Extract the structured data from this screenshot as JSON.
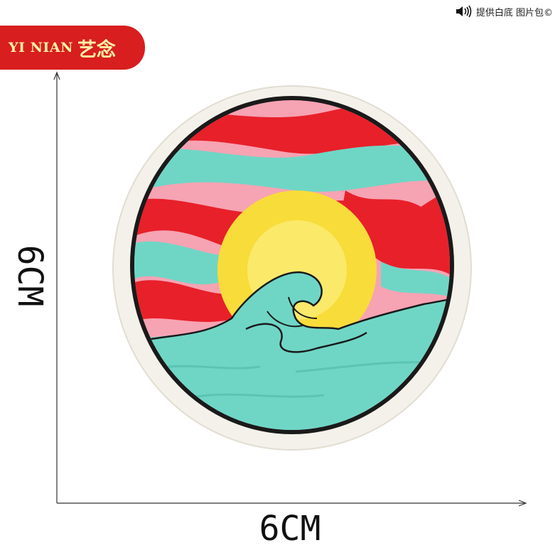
{
  "header": {
    "note": "提供白底 图片包©",
    "speaker_icon": "speaker-icon"
  },
  "brand": {
    "latin": "YI NIAN",
    "chinese": "艺念",
    "bg_color": "#d81e1e",
    "text_color": "#fff3a6"
  },
  "dimensions": {
    "height_label": "6CM",
    "width_label": "6CM"
  },
  "patch": {
    "subject": "embroidered-round-patch-wave-sunset",
    "colors": {
      "red": "#e8202a",
      "pink": "#f6a3b3",
      "teal": "#6fd6c6",
      "yellow": "#f8dc3a",
      "outline": "#1a1a1a",
      "border_backing": "#f4f1ea"
    }
  }
}
